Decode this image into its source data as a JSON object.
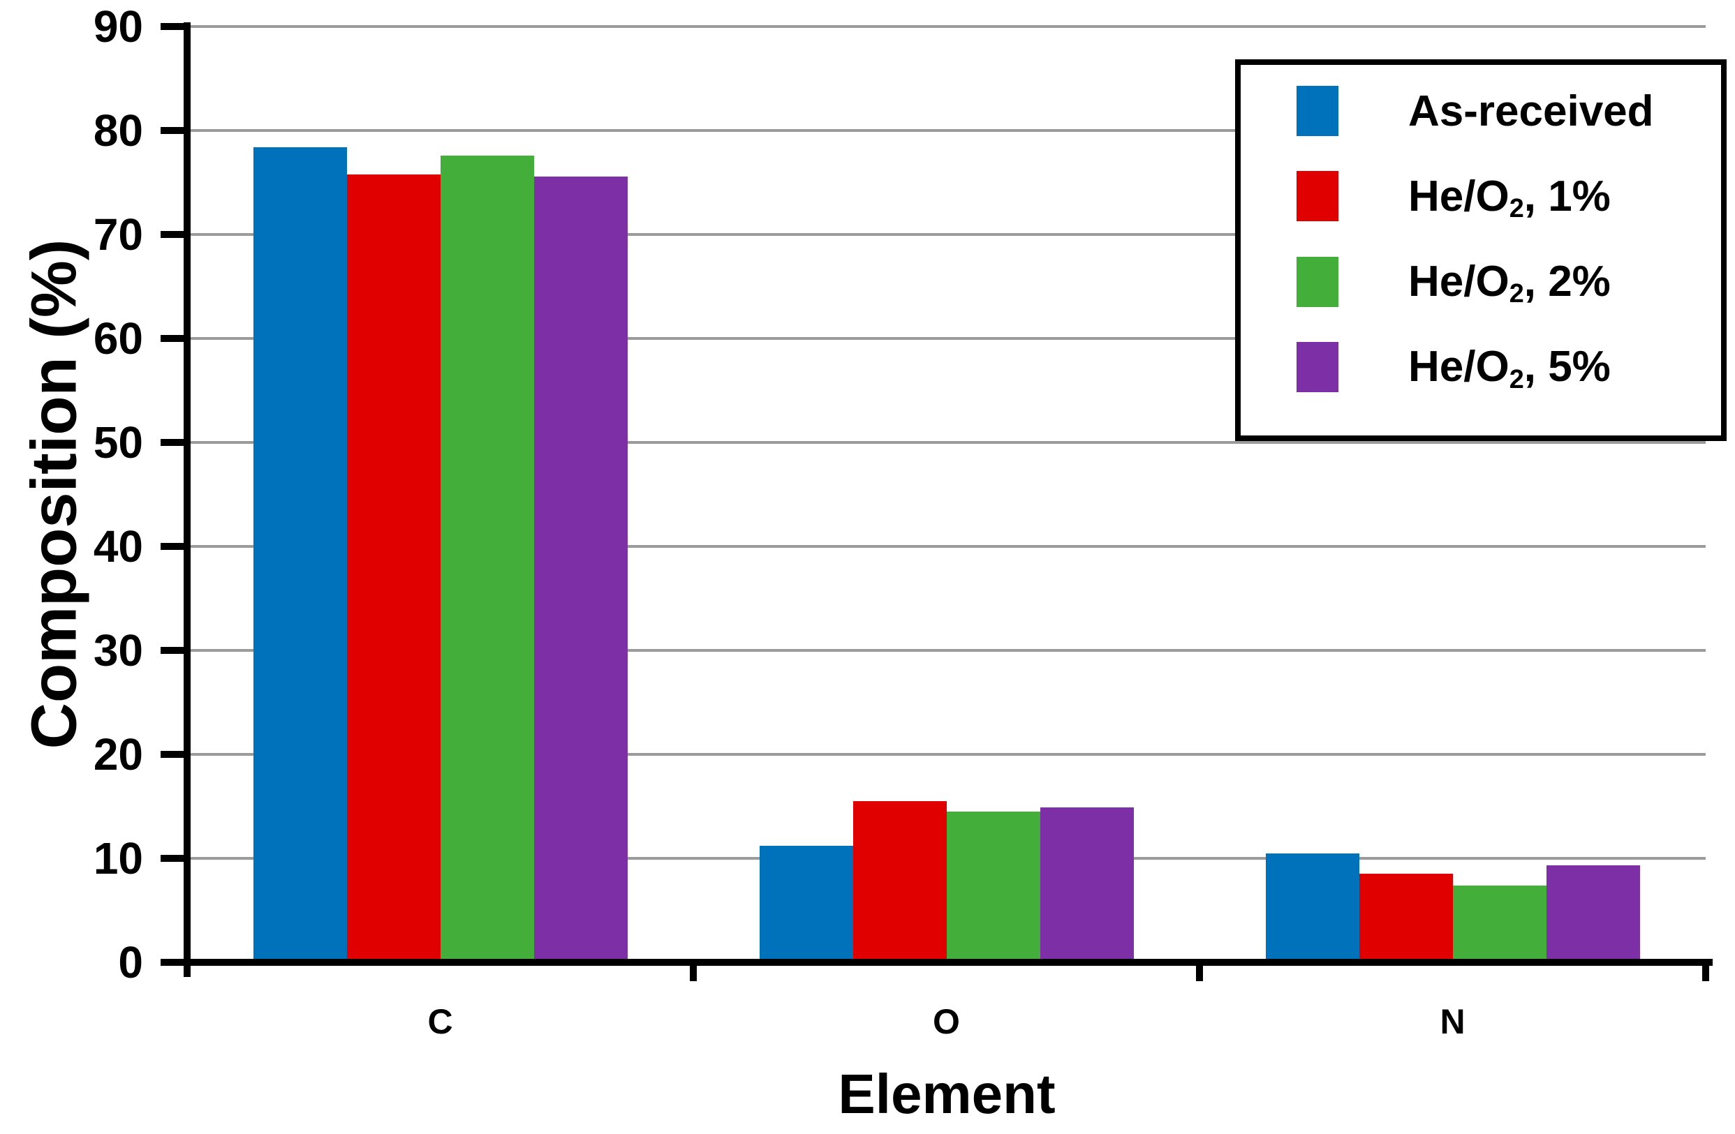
{
  "chart_data": {
    "type": "bar",
    "title": "",
    "xlabel": "Element",
    "ylabel": "Composition (%)",
    "ylim": [
      0,
      90
    ],
    "ytick_step": 10,
    "yticks": [
      0,
      10,
      20,
      30,
      40,
      50,
      60,
      70,
      80,
      90
    ],
    "categories": [
      "C",
      "O",
      "N"
    ],
    "series": [
      {
        "name": "As-received",
        "label_parts": {
          "prefix": "As-received",
          "sub": "",
          "suffix": ""
        },
        "color": "#0072BC",
        "values": [
          78.4,
          11.2,
          10.5
        ]
      },
      {
        "name": "He/O2, 1%",
        "label_parts": {
          "prefix": "He/O",
          "sub": "2",
          "suffix": ", 1%"
        },
        "color": "#E00000",
        "values": [
          75.8,
          15.5,
          8.5
        ]
      },
      {
        "name": "He/O2, 2%",
        "label_parts": {
          "prefix": "He/O",
          "sub": "2",
          "suffix": ", 2%"
        },
        "color": "#44AE3A",
        "values": [
          77.6,
          14.5,
          7.4
        ]
      },
      {
        "name": "He/O2, 5%",
        "label_parts": {
          "prefix": "He/O",
          "sub": "2",
          "suffix": ", 5%"
        },
        "color": "#7D2FA6",
        "values": [
          75.6,
          14.9,
          9.3
        ]
      }
    ],
    "grid": true,
    "grid_color": "#9B9B9B",
    "axis_color": "#000000",
    "legend_position": "top-right"
  }
}
